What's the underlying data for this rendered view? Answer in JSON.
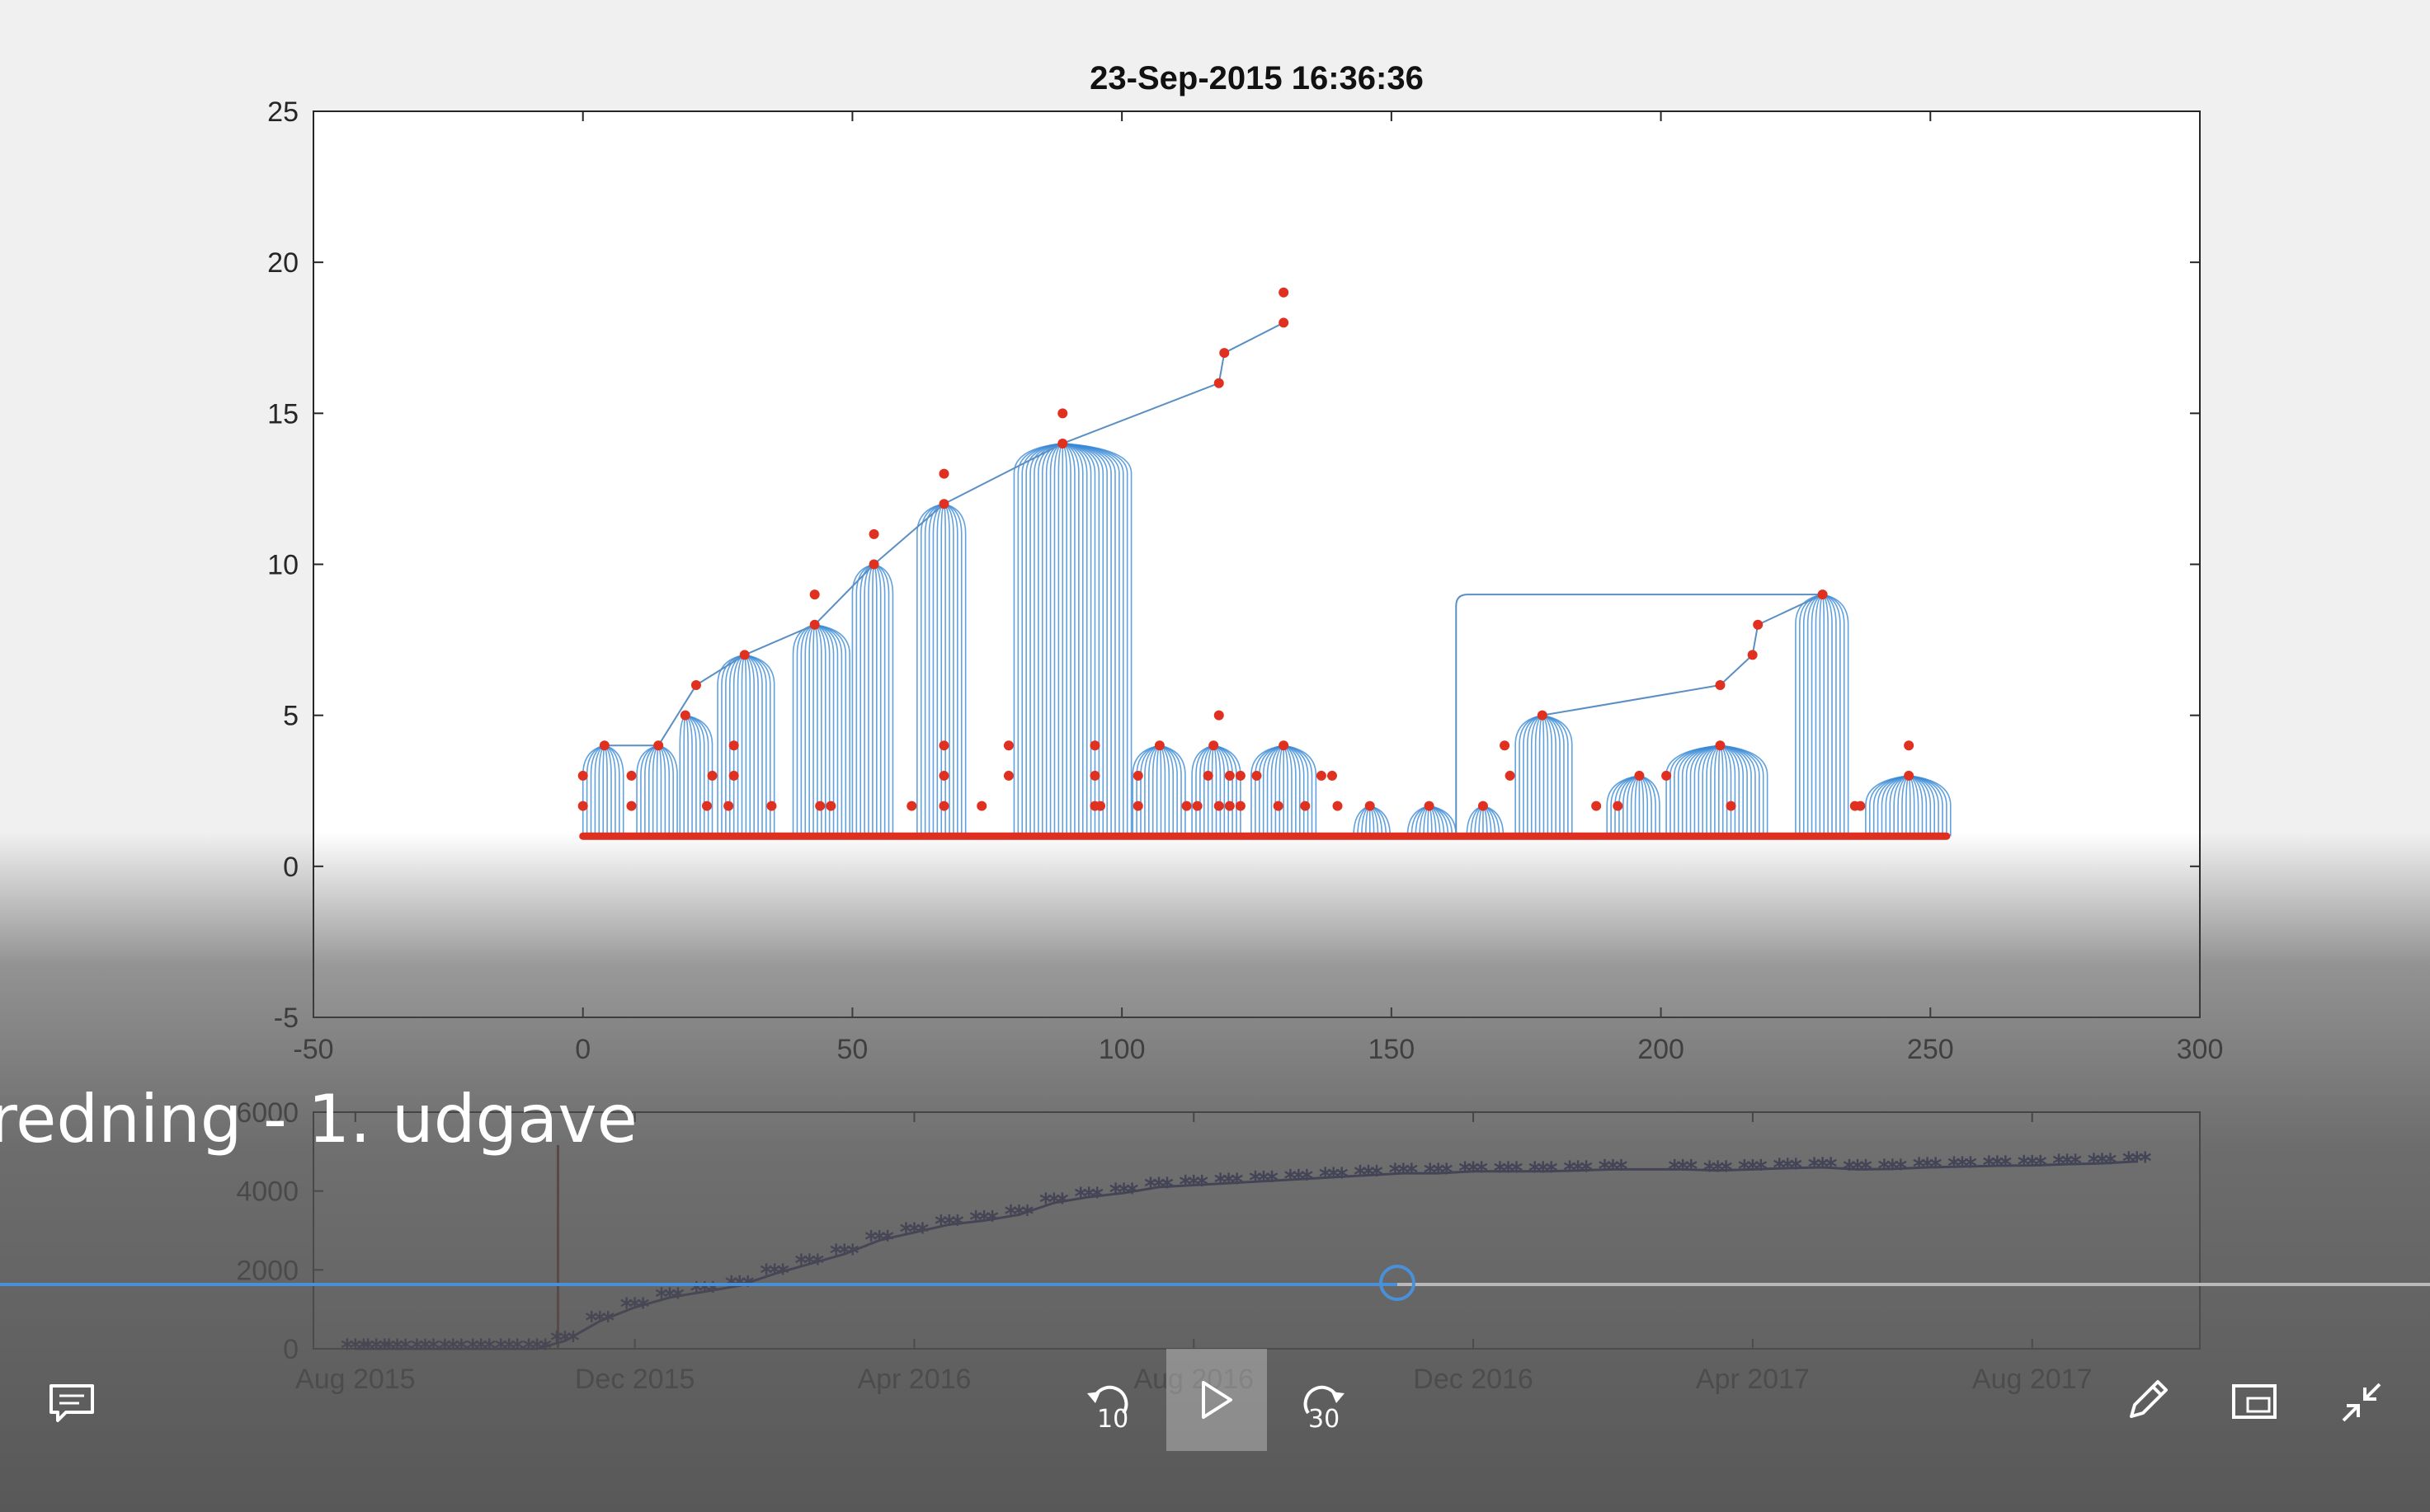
{
  "chart_data": [
    {
      "type": "scatter",
      "title": "23-Sep-2015 16:36:36",
      "xlim": [
        -50,
        300
      ],
      "ylim": [
        -5,
        25
      ],
      "xticks": [
        "-50",
        "0",
        "50",
        "100",
        "150",
        "200",
        "250",
        "300"
      ],
      "yticks": [
        "-5",
        "0",
        "5",
        "10",
        "15",
        "20",
        "25"
      ],
      "grid": false,
      "baseline": {
        "x_range": [
          0,
          253
        ],
        "y": 1,
        "color": "#e03020"
      },
      "series": [
        {
          "color": "#e03020",
          "points": [
            [
              0,
              3
            ],
            [
              0,
              2
            ],
            [
              4,
              4
            ],
            [
              9,
              3
            ],
            [
              9,
              2
            ],
            [
              14,
              4
            ],
            [
              19,
              5
            ],
            [
              21,
              6
            ],
            [
              23,
              2
            ],
            [
              24,
              3
            ],
            [
              27,
              2
            ],
            [
              28,
              4
            ],
            [
              28,
              3
            ],
            [
              30,
              7
            ],
            [
              35,
              2
            ],
            [
              43,
              9
            ],
            [
              43,
              8
            ],
            [
              44,
              2
            ],
            [
              46,
              2
            ],
            [
              54,
              11
            ],
            [
              54,
              10
            ],
            [
              61,
              2
            ],
            [
              67,
              13
            ],
            [
              67,
              12
            ],
            [
              67,
              4
            ],
            [
              67,
              3
            ],
            [
              67,
              2
            ],
            [
              74,
              2
            ],
            [
              79,
              4
            ],
            [
              79,
              3
            ],
            [
              89,
              15
            ],
            [
              89,
              14
            ],
            [
              95,
              4
            ],
            [
              95,
              3
            ],
            [
              95,
              2
            ],
            [
              96,
              2
            ],
            [
              103,
              3
            ],
            [
              103,
              2
            ],
            [
              107,
              4
            ],
            [
              112,
              2
            ],
            [
              114,
              2
            ],
            [
              116,
              3
            ],
            [
              117,
              4
            ],
            [
              118,
              5
            ],
            [
              118,
              16
            ],
            [
              119,
              17
            ],
            [
              118,
              2
            ],
            [
              120,
              2
            ],
            [
              120,
              3
            ],
            [
              122,
              3
            ],
            [
              122,
              2
            ],
            [
              125,
              3
            ],
            [
              130,
              19
            ],
            [
              130,
              18
            ],
            [
              130,
              4
            ],
            [
              129,
              2
            ],
            [
              134,
              2
            ],
            [
              137,
              3
            ],
            [
              139,
              3
            ],
            [
              140,
              2
            ],
            [
              146,
              2
            ],
            [
              157,
              2
            ],
            [
              167,
              2
            ],
            [
              171,
              4
            ],
            [
              172,
              3
            ],
            [
              178,
              5
            ],
            [
              188,
              2
            ],
            [
              192,
              2
            ],
            [
              196,
              3
            ],
            [
              201,
              3
            ],
            [
              211,
              6
            ],
            [
              211,
              4
            ],
            [
              213,
              2
            ],
            [
              217,
              7
            ],
            [
              218,
              8
            ],
            [
              230,
              9
            ],
            [
              236,
              2
            ],
            [
              237,
              2
            ],
            [
              246,
              4
            ],
            [
              246,
              3
            ]
          ]
        }
      ],
      "trees": [
        {
          "x_range": [
            0,
            8
          ],
          "apex": [
            4,
            4
          ]
        },
        {
          "x_range": [
            10,
            18
          ],
          "apex": [
            14,
            4
          ]
        },
        {
          "x_range": [
            18,
            24
          ],
          "apex": [
            19,
            5
          ]
        },
        {
          "x_range": [
            25,
            36
          ],
          "apex": [
            30,
            7
          ]
        },
        {
          "x_range": [
            39,
            50
          ],
          "apex": [
            43,
            8
          ]
        },
        {
          "x_range": [
            50,
            58
          ],
          "apex": [
            54,
            10
          ]
        },
        {
          "x_range": [
            62,
            71
          ],
          "apex": [
            67,
            12
          ]
        },
        {
          "x_range": [
            80,
            102
          ],
          "apex": [
            89,
            14
          ]
        },
        {
          "x_range": [
            102,
            112
          ],
          "apex": [
            107,
            4
          ]
        },
        {
          "x_range": [
            113,
            122
          ],
          "apex": [
            117,
            4
          ]
        },
        {
          "x_range": [
            124,
            136
          ],
          "apex": [
            130,
            4
          ]
        },
        {
          "x_range": [
            143,
            150
          ],
          "apex": [
            146,
            2
          ]
        },
        {
          "x_range": [
            153,
            162
          ],
          "apex": [
            157,
            2
          ]
        },
        {
          "x_range": [
            164,
            171
          ],
          "apex": [
            167,
            2
          ]
        },
        {
          "x_range": [
            173,
            184
          ],
          "apex": [
            178,
            5
          ]
        },
        {
          "x_range": [
            190,
            200
          ],
          "apex": [
            196,
            3
          ]
        },
        {
          "x_range": [
            201,
            220
          ],
          "apex": [
            211,
            4
          ]
        },
        {
          "x_range": [
            225,
            235
          ],
          "apex": [
            230,
            9
          ]
        },
        {
          "x_range": [
            238,
            254
          ],
          "apex": [
            246,
            3
          ]
        }
      ],
      "cross_links": [
        {
          "from": [
            4,
            4
          ],
          "to": [
            14,
            4
          ]
        },
        {
          "from": [
            14,
            4
          ],
          "to": [
            21,
            6
          ]
        },
        {
          "from": [
            21,
            6
          ],
          "to": [
            30,
            7
          ]
        },
        {
          "from": [
            30,
            7
          ],
          "to": [
            43,
            8
          ]
        },
        {
          "from": [
            43,
            8
          ],
          "to": [
            54,
            10
          ]
        },
        {
          "from": [
            54,
            10
          ],
          "to": [
            67,
            12
          ]
        },
        {
          "from": [
            67,
            12
          ],
          "to": [
            89,
            14
          ]
        },
        {
          "from": [
            89,
            14
          ],
          "to": [
            118,
            16
          ]
        },
        {
          "from": [
            118,
            16
          ],
          "to": [
            119,
            17
          ]
        },
        {
          "from": [
            119,
            17
          ],
          "to": [
            130,
            18
          ]
        },
        {
          "from": [
            162,
            1
          ],
          "to": [
            230,
            9
          ]
        },
        {
          "from": [
            178,
            5
          ],
          "to": [
            211,
            6
          ]
        },
        {
          "from": [
            211,
            6
          ],
          "to": [
            217,
            7
          ]
        },
        {
          "from": [
            217,
            7
          ],
          "to": [
            218,
            8
          ]
        },
        {
          "from": [
            218,
            8
          ],
          "to": [
            230,
            9
          ]
        }
      ]
    },
    {
      "type": "line",
      "xticks": [
        "Aug 2015",
        "Dec 2015",
        "Apr 2016",
        "Aug 2016",
        "Dec 2016",
        "Apr 2017",
        "Aug 2017"
      ],
      "yticks": [
        "0",
        "2000",
        "4000",
        "6000"
      ],
      "ylim": [
        0,
        6000
      ],
      "x_unit": "months since Aug 2015",
      "xlim": [
        -0.6,
        26.4
      ],
      "marker": "*",
      "color": "#0a0a78",
      "cursor_x": 2.9,
      "x": [
        0,
        0.3,
        0.6,
        1.0,
        1.4,
        1.8,
        2.2,
        2.6,
        3.0,
        3.5,
        4.0,
        4.5,
        5.0,
        5.5,
        6.0,
        6.5,
        7.0,
        7.5,
        8.0,
        8.5,
        9.0,
        9.5,
        10.0,
        10.5,
        11.0,
        11.5,
        12.0,
        12.5,
        13.0,
        13.5,
        14.0,
        14.5,
        15.0,
        15.5,
        16.0,
        16.5,
        17.0,
        17.5,
        18.0,
        19.0,
        19.5,
        20.0,
        20.5,
        21.0,
        21.5,
        22.0,
        22.5,
        23.0,
        23.5,
        24.0,
        24.5,
        25.0,
        25.5
      ],
      "y": [
        0,
        0,
        0,
        0,
        0,
        0,
        0,
        0,
        200,
        700,
        1050,
        1300,
        1450,
        1600,
        1900,
        2150,
        2400,
        2750,
        2950,
        3150,
        3250,
        3400,
        3700,
        3850,
        3950,
        4100,
        4150,
        4200,
        4250,
        4300,
        4350,
        4400,
        4450,
        4450,
        4500,
        4500,
        4500,
        4520,
        4550,
        4550,
        4520,
        4550,
        4580,
        4600,
        4550,
        4560,
        4600,
        4620,
        4640,
        4650,
        4680,
        4700,
        4750
      ]
    }
  ],
  "video": {
    "title_fragment": "redning - 1. udgave",
    "progress": 0.575
  },
  "controls": {
    "rewind_seconds": "10",
    "forward_seconds": "30"
  },
  "icons": {
    "captions": "captions-icon",
    "rewind": "rewind-icon",
    "play": "play-icon",
    "forward": "forward-icon",
    "edit": "pencil-icon",
    "miniplayer": "miniplayer-icon",
    "exit_fullscreen": "exit-fullscreen-icon"
  }
}
